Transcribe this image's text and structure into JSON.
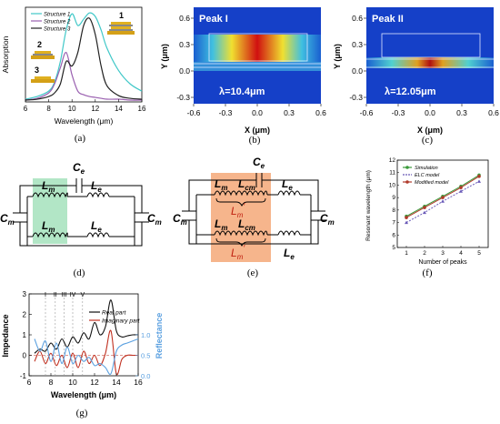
{
  "panel_a": {
    "caption": "(a)",
    "xlabel": "Wavelength (μm)",
    "ylabel": "Absorption",
    "x_ticks": [
      "6",
      "8",
      "10",
      "12",
      "14",
      "16"
    ],
    "legend": [
      "Structure 1",
      "Structure 2",
      "Structure 3"
    ],
    "structure_numbers": [
      "1",
      "2",
      "3"
    ],
    "colors": {
      "s1": "#40c8c8",
      "s2": "#9a60b0",
      "s3": "#222222"
    }
  },
  "panel_b": {
    "caption": "(b)",
    "title": "Peak I",
    "lambda": "λ=10.4μm",
    "xlabel": "X (μm)",
    "ylabel": "Y (μm)",
    "x_ticks": [
      "-0.6",
      "-0.3",
      "0.0",
      "0.3",
      "0.6"
    ],
    "y_ticks": [
      "0.6",
      "0.3",
      "0.0",
      "-0.3"
    ]
  },
  "panel_c": {
    "caption": "(c)",
    "title": "Peak II",
    "lambda": "λ=12.05μm",
    "xlabel": "X (μm)",
    "ylabel": "Y (μm)",
    "x_ticks": [
      "-0.6",
      "-0.3",
      "0.0",
      "0.3",
      "0.6"
    ],
    "y_ticks": [
      "0.6",
      "0.3",
      "0.0",
      "-0.3"
    ]
  },
  "panel_d": {
    "caption": "(d)",
    "labels": {
      "ce": "C",
      "ce_sub": "e",
      "cm": "C",
      "cm_sub": "m",
      "lm": "L",
      "lm_sub": "m",
      "le": "L",
      "le_sub": "e"
    }
  },
  "panel_e": {
    "caption": "(e)",
    "labels": {
      "ce": "C",
      "ce_sub": "e",
      "cm": "C",
      "cm_sub": "m",
      "lm": "L",
      "lm_sub": "m",
      "lcm": "L",
      "lcm_sub": "cm",
      "le": "L",
      "le_sub": "e",
      "lprime": "L",
      "lprime_sub": "m",
      "prime": "′"
    }
  },
  "panel_f": {
    "caption": "(f)",
    "xlabel": "Number of peaks",
    "ylabel": "Resonant wavelength (μm)",
    "x_ticks": [
      "1",
      "2",
      "3",
      "4",
      "5"
    ],
    "y_ticks": [
      "5",
      "6",
      "7",
      "8",
      "9",
      "10",
      "11",
      "12"
    ],
    "legend": [
      "Simulation",
      "ELC model",
      "Modified model"
    ],
    "colors": {
      "sim": "#3a9a3a",
      "elc": "#6a5ab8",
      "mod": "#b03a2a"
    }
  },
  "panel_g": {
    "caption": "(g)",
    "xlabel": "Wavelength (μm)",
    "ylabel_left": "Impedance",
    "ylabel_right": "Reflectance",
    "x_ticks": [
      "6",
      "8",
      "10",
      "12",
      "14",
      "16"
    ],
    "y_ticks_left": [
      "3",
      "2",
      "1",
      "0",
      "-1"
    ],
    "y_ticks_right": [
      "1.0",
      "0.5",
      "0.0"
    ],
    "peak_labels": [
      "I",
      "II",
      "III",
      "IV",
      "V"
    ],
    "legend": [
      "Real part",
      "Imaginary part"
    ],
    "colors": {
      "real": "#111111",
      "imag": "#c03020",
      "refl": "#5aa0e0"
    }
  },
  "chart_data": [
    {
      "type": "line",
      "panel": "a",
      "xlabel": "Wavelength (μm)",
      "ylabel": "Absorption",
      "xlim": [
        6,
        16
      ],
      "x": [
        6,
        7,
        8,
        8.5,
        9,
        9.5,
        10,
        10.5,
        11,
        11.5,
        12,
        12.5,
        13,
        14,
        15,
        16
      ],
      "series": [
        {
          "name": "Structure 1",
          "values": [
            0.03,
            0.06,
            0.12,
            0.22,
            0.45,
            0.8,
            0.98,
            0.85,
            0.92,
            0.99,
            0.95,
            0.8,
            0.6,
            0.35,
            0.2,
            0.12
          ]
        },
        {
          "name": "Structure 2",
          "values": [
            0.02,
            0.04,
            0.1,
            0.2,
            0.38,
            0.55,
            0.3,
            0.12,
            0.08,
            0.06,
            0.05,
            0.04,
            0.03,
            0.03,
            0.02,
            0.02
          ]
        },
        {
          "name": "Structure 3",
          "values": [
            0.02,
            0.03,
            0.06,
            0.1,
            0.2,
            0.45,
            0.4,
            0.55,
            0.85,
            0.93,
            0.75,
            0.4,
            0.18,
            0.07,
            0.04,
            0.03
          ]
        }
      ]
    },
    {
      "type": "scatter",
      "panel": "f",
      "xlabel": "Number of peaks",
      "ylabel": "Resonant wavelength (μm)",
      "xlim": [
        0.5,
        5.5
      ],
      "ylim": [
        5,
        12
      ],
      "x": [
        1,
        2,
        3,
        4,
        5
      ],
      "series": [
        {
          "name": "Simulation",
          "values": [
            7.5,
            8.3,
            9.1,
            9.9,
            10.8
          ]
        },
        {
          "name": "ELC model",
          "values": [
            7.0,
            7.8,
            8.7,
            9.5,
            10.3
          ]
        },
        {
          "name": "Modified model",
          "values": [
            7.4,
            8.2,
            9.0,
            9.8,
            10.7
          ]
        }
      ]
    },
    {
      "type": "line",
      "panel": "g",
      "xlabel": "Wavelength (μm)",
      "ylabel": "Impedance",
      "xlim": [
        6,
        16
      ],
      "ylim": [
        -1,
        3
      ],
      "x": [
        6.5,
        7,
        7.5,
        8,
        8.5,
        9,
        9.5,
        10,
        10.5,
        11,
        11.5,
        12,
        12.5,
        13,
        13.5,
        14,
        14.5,
        15,
        15.5,
        16
      ],
      "series": [
        {
          "name": "Real part",
          "values": [
            0.1,
            0.3,
            0.2,
            0.6,
            0.3,
            0.8,
            0.4,
            0.9,
            0.6,
            1.1,
            0.8,
            1.6,
            1.0,
            1.4,
            2.7,
            1.2,
            0.9,
            0.95,
            1.0,
            1.0
          ]
        },
        {
          "name": "Imaginary part",
          "values": [
            -0.3,
            0.2,
            -0.4,
            0.1,
            -0.5,
            0.0,
            -0.6,
            0.1,
            -0.6,
            0.2,
            -0.4,
            0.0,
            -0.5,
            0.1,
            1.2,
            -0.9,
            -0.2,
            0.0,
            0.0,
            0.0
          ]
        },
        {
          "name": "Reflectance",
          "values": [
            0.9,
            0.6,
            0.85,
            0.35,
            0.8,
            0.3,
            0.7,
            0.3,
            0.5,
            0.35,
            0.45,
            0.25,
            0.3,
            0.2,
            0.05,
            0.6,
            0.75,
            0.8,
            0.85,
            0.9
          ]
        }
      ]
    }
  ]
}
